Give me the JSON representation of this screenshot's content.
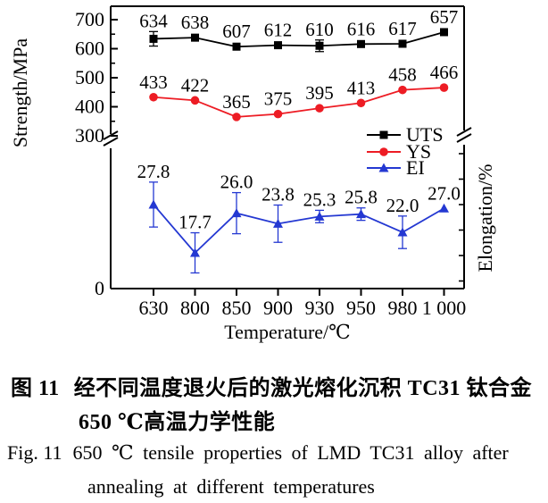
{
  "caption": {
    "zh_label": "图 11",
    "zh_text": "经不同温度退火后的激光熔化沉积 TC31 钛合金",
    "zh_text2": "650 ℃高温力学性能",
    "en_label": "Fig. 11",
    "en_text": "650 ℃ tensile properties of LMD TC31 alloy after",
    "en_text2": "annealing at different temperatures"
  },
  "chart_data": {
    "type": "line",
    "title": "",
    "xlabel": "Temperature/℃",
    "ylabel_left": "Strength/MPa",
    "ylabel_right": "Elongation/%",
    "categories": [
      "630",
      "800",
      "850",
      "900",
      "930",
      "950",
      "980",
      "1 000"
    ],
    "left_axis": {
      "tick_values": [
        700,
        600,
        500,
        400,
        300
      ],
      "minor_tick_values": [
        650,
        550,
        450,
        350
      ],
      "range_top_panel": [
        300,
        700
      ],
      "zero_label": "0",
      "axis_break": true
    },
    "right_axis": {
      "labeled_ticks": [],
      "axis_break": true
    },
    "grid": false,
    "legend": {
      "position": "inside-right-middle",
      "entries": [
        "UTS",
        "YS",
        "EI"
      ]
    },
    "series": [
      {
        "name": "UTS",
        "axis": "left",
        "color": "#000000",
        "marker": "square",
        "values": [
          634,
          638,
          607,
          612,
          610,
          616,
          617,
          657
        ],
        "errors": [
          25,
          0,
          0,
          0,
          20,
          0,
          0,
          0
        ],
        "labels": [
          "634",
          "638",
          "607",
          "612",
          "610",
          "616",
          "617",
          "657"
        ]
      },
      {
        "name": "YS",
        "axis": "left",
        "color": "#ed1c24",
        "marker": "circle",
        "values": [
          433,
          422,
          365,
          375,
          395,
          413,
          458,
          466
        ],
        "errors": [
          0,
          0,
          0,
          0,
          0,
          0,
          0,
          0
        ],
        "labels": [
          "433",
          "422",
          "365",
          "375",
          "395",
          "413",
          "458",
          "466"
        ]
      },
      {
        "name": "EI",
        "axis": "right",
        "color": "#2438d2",
        "marker": "triangle",
        "values": [
          27.8,
          17.7,
          26.0,
          23.8,
          25.3,
          25.8,
          22.0,
          27.0
        ],
        "errors": [
          4.7,
          4.2,
          4.3,
          3.9,
          1.3,
          1.3,
          3.4,
          0
        ],
        "labels": [
          "27.8",
          "17.7",
          "26.0",
          "23.8",
          "25.3",
          "25.8",
          "22.0",
          "27.0"
        ]
      }
    ]
  }
}
